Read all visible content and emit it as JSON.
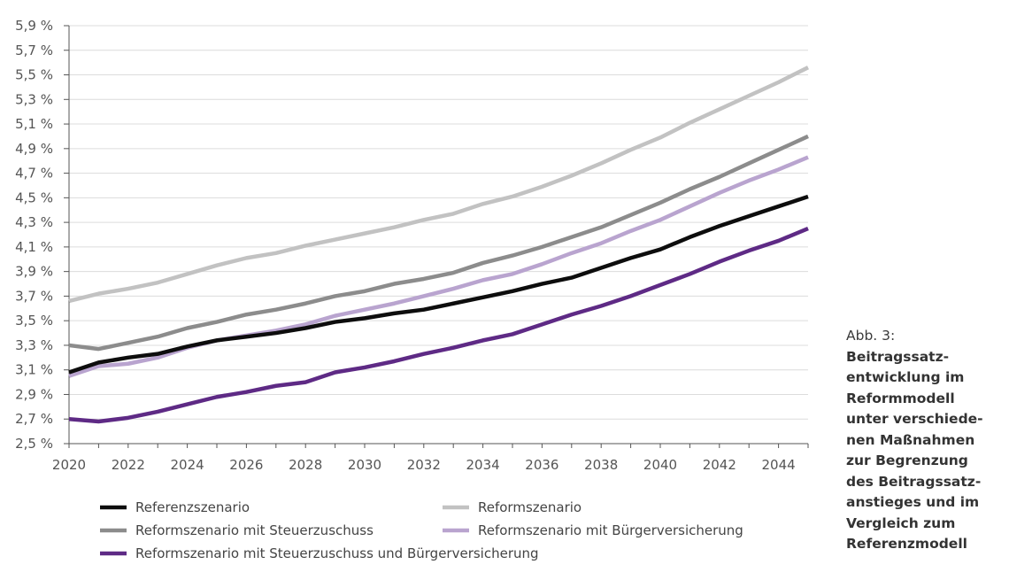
{
  "chart_data": {
    "type": "line",
    "x": [
      2020,
      2021,
      2022,
      2023,
      2024,
      2025,
      2026,
      2027,
      2028,
      2029,
      2030,
      2031,
      2032,
      2033,
      2034,
      2035,
      2036,
      2037,
      2038,
      2039,
      2040,
      2041,
      2042,
      2043,
      2044,
      2045
    ],
    "xticks": [
      "2020",
      "2022",
      "2024",
      "2026",
      "2028",
      "2030",
      "2032",
      "2034",
      "2036",
      "2038",
      "2040",
      "2042",
      "2044"
    ],
    "xtick_values": [
      2020,
      2022,
      2024,
      2026,
      2028,
      2030,
      2032,
      2034,
      2036,
      2038,
      2040,
      2042,
      2044
    ],
    "yticks": [
      "2,5 %",
      "2,7 %",
      "2,9 %",
      "3,1 %",
      "3,3 %",
      "3,5 %",
      "3,7 %",
      "3,9 %",
      "4,1 %",
      "4,3 %",
      "4,5 %",
      "4,7 %",
      "4,9 %",
      "5,1 %",
      "5,3 %",
      "5,5 %",
      "5,7 %",
      "5,9 %"
    ],
    "ylim": [
      2.5,
      5.9
    ],
    "xlim": [
      2020,
      2045
    ],
    "grid": true,
    "legend_position": "bottom",
    "series": [
      {
        "name": "Referenzszenario",
        "color": "#0d0d0d",
        "values": [
          3.08,
          3.16,
          3.2,
          3.23,
          3.29,
          3.34,
          3.37,
          3.4,
          3.44,
          3.49,
          3.52,
          3.56,
          3.59,
          3.64,
          3.69,
          3.74,
          3.8,
          3.85,
          3.93,
          4.01,
          4.08,
          4.18,
          4.27,
          4.35,
          4.43,
          4.51
        ]
      },
      {
        "name": "Reformszenario",
        "color": "#c2c2c2",
        "values": [
          3.66,
          3.72,
          3.76,
          3.81,
          3.88,
          3.95,
          4.01,
          4.05,
          4.11,
          4.16,
          4.21,
          4.26,
          4.32,
          4.37,
          4.45,
          4.51,
          4.59,
          4.68,
          4.78,
          4.89,
          4.99,
          5.11,
          5.22,
          5.33,
          5.44,
          5.56
        ]
      },
      {
        "name": "Reformszenario mit Steuerzuschuss",
        "color": "#8c8c8c",
        "values": [
          3.3,
          3.27,
          3.32,
          3.37,
          3.44,
          3.49,
          3.55,
          3.59,
          3.64,
          3.7,
          3.74,
          3.8,
          3.84,
          3.89,
          3.97,
          4.03,
          4.1,
          4.18,
          4.26,
          4.36,
          4.46,
          4.57,
          4.67,
          4.78,
          4.89,
          5.0
        ]
      },
      {
        "name": "Reformszenario mit Bürgerversicherung",
        "color": "#b9a4cf",
        "values": [
          3.05,
          3.13,
          3.15,
          3.2,
          3.28,
          3.34,
          3.38,
          3.42,
          3.47,
          3.54,
          3.59,
          3.64,
          3.7,
          3.76,
          3.83,
          3.88,
          3.96,
          4.05,
          4.13,
          4.23,
          4.32,
          4.43,
          4.54,
          4.64,
          4.73,
          4.83
        ]
      },
      {
        "name": "Reformszenario mit Steuerzuschuss und Bürgerversicherung",
        "color": "#5e2a85",
        "values": [
          2.7,
          2.68,
          2.71,
          2.76,
          2.82,
          2.88,
          2.92,
          2.97,
          3.0,
          3.08,
          3.12,
          3.17,
          3.23,
          3.28,
          3.34,
          3.39,
          3.47,
          3.55,
          3.62,
          3.7,
          3.79,
          3.88,
          3.98,
          4.07,
          4.15,
          4.25
        ]
      }
    ]
  },
  "caption": {
    "number": "Abb. 3:",
    "title": "Beitragssatz-\nentwicklung im\nReformmodell\nunter verschiede-\nnen Maßnahmen\nzur Begrenzung\ndes Beitragssatz-\nanstieges und im\nVergleich zum\nReferenzmodell"
  }
}
